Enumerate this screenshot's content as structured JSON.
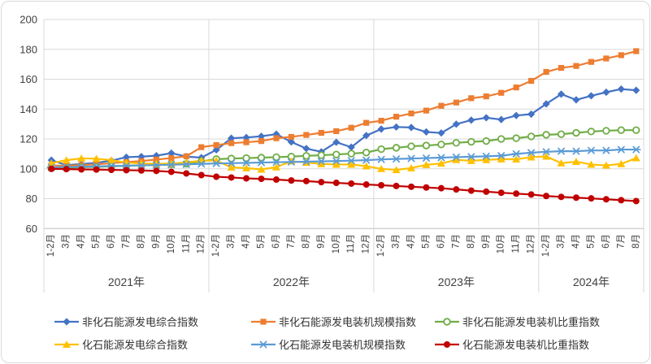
{
  "chart_data": {
    "type": "line",
    "title": "",
    "ylabel": "",
    "xlabel": "",
    "ylim": [
      60,
      200
    ],
    "y_ticks": [
      200,
      180,
      160,
      140,
      120,
      100,
      80,
      60
    ],
    "grid": true,
    "legend_position": "bottom",
    "colors": {
      "grid": "#d9d9d9",
      "axis": "#bfbfbf",
      "text": "#404040",
      "divider": "#d9d9d9"
    },
    "x_axis": {
      "year_groups": [
        {
          "label": "2021年",
          "months": [
            "1-2月",
            "3月",
            "4月",
            "5月",
            "6月",
            "7月",
            "8月",
            "9月",
            "10月",
            "11月",
            "12月"
          ]
        },
        {
          "label": "2022年",
          "months": [
            "1-2月",
            "3月",
            "4月",
            "5月",
            "6月",
            "7月",
            "8月",
            "9月",
            "10月",
            "11月",
            "12月"
          ]
        },
        {
          "label": "2023年",
          "months": [
            "1-2月",
            "3月",
            "4月",
            "5月",
            "6月",
            "7月",
            "8月",
            "9月",
            "10月",
            "11月",
            "12月"
          ]
        },
        {
          "label": "2024年",
          "months": [
            "1-2月",
            "3月",
            "4月",
            "5月",
            "6月",
            "7月",
            "8月"
          ]
        }
      ]
    },
    "series": [
      {
        "name": "非化石能源发电综合指数",
        "color": "#4472c4",
        "marker": "diamond",
        "values": [
          105.8,
          102.5,
          103.2,
          104,
          105.5,
          107.8,
          108.2,
          108.8,
          110.5,
          108.2,
          107.5,
          112.7,
          120.5,
          121,
          121.8,
          123.2,
          118,
          113.6,
          111.4,
          117.8,
          114.5,
          122.3,
          126.6,
          128,
          127.7,
          124.7,
          124,
          129.9,
          132.6,
          134.2,
          133,
          135.7,
          136.6,
          143.5,
          150,
          146.2,
          148.9,
          151.3,
          153.4,
          152.6
        ]
      },
      {
        "name": "非化石能源发电装机规模指数",
        "color": "#ed7d31",
        "marker": "square",
        "values": [
          102.3,
          102,
          102.5,
          103,
          103.8,
          104.5,
          105.2,
          106.2,
          107.2,
          108.4,
          114.5,
          115.9,
          117.2,
          117.8,
          118.6,
          120.5,
          121.4,
          122.7,
          124.1,
          125.2,
          127.5,
          130.8,
          132.2,
          134.9,
          137.1,
          139,
          142.2,
          144.4,
          147.3,
          148.5,
          150.9,
          154.5,
          158.9,
          164.9,
          167.6,
          168.9,
          171.6,
          173.9,
          176.1,
          178.8
        ]
      },
      {
        "name": "非化石能源发电装机比重指数",
        "color": "#70ad47",
        "marker": "circle-open",
        "values": [
          100.3,
          100.6,
          101,
          101.3,
          101.7,
          102,
          102.4,
          102.7,
          103,
          103.4,
          105,
          106.5,
          106.9,
          107.2,
          107.5,
          107.8,
          108.2,
          108.7,
          109.1,
          109.6,
          110.2,
          110.9,
          113.2,
          114.1,
          115.1,
          115.6,
          116.3,
          117.4,
          118.1,
          118.6,
          120,
          120.5,
          121.7,
          122.8,
          123.2,
          124.1,
          125,
          125.5,
          125.9,
          125.9
        ]
      },
      {
        "name": "化石能源发电综合指数",
        "color": "#ffc000",
        "marker": "triangle",
        "values": [
          103.8,
          105.8,
          107,
          106.8,
          105.8,
          104.2,
          103.6,
          103.4,
          103.5,
          104.3,
          105.5,
          105.5,
          101,
          100.5,
          99.6,
          101.1,
          105.1,
          104.2,
          103.3,
          102.9,
          102.9,
          101.8,
          100,
          99.3,
          100.5,
          102.7,
          103.6,
          106,
          105.4,
          106,
          106.5,
          106.4,
          107.8,
          108.3,
          103.8,
          104.8,
          102.9,
          102.3,
          103.3,
          107.2
        ]
      },
      {
        "name": "化石能源发电装机规模指数",
        "color": "#5b9bd5",
        "marker": "asterisk",
        "values": [
          101,
          101.2,
          101.4,
          101.6,
          101.9,
          102.1,
          102.3,
          102.5,
          102.8,
          103,
          103.3,
          103.6,
          103.8,
          104,
          104.2,
          104.4,
          104.6,
          104.8,
          105,
          105.2,
          105.5,
          105.8,
          106.3,
          106.6,
          106.9,
          107.2,
          107.5,
          107.8,
          108.1,
          108.4,
          108.8,
          110,
          110.8,
          111.4,
          111.8,
          111.8,
          112.3,
          112.3,
          112.9,
          112.9
        ]
      },
      {
        "name": "化石能源发电装机比重指数",
        "color": "#c00000",
        "marker": "circle",
        "values": [
          100,
          99.8,
          99.6,
          99.5,
          99.3,
          99.1,
          98.9,
          98.6,
          98,
          96.9,
          95.8,
          94.7,
          94.2,
          93.6,
          93.3,
          92.8,
          92.2,
          91.8,
          91.1,
          90.6,
          90.1,
          89.5,
          89,
          88.5,
          88,
          87.5,
          87,
          86.2,
          85.4,
          84.7,
          84,
          83.4,
          82.8,
          81.8,
          81.2,
          80.7,
          80.2,
          79.6,
          79,
          78.4
        ]
      }
    ]
  }
}
